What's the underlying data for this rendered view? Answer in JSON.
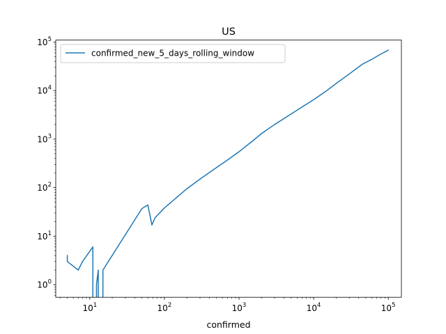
{
  "chart_data": {
    "type": "line",
    "title": "US",
    "xlabel": "confirmed",
    "ylabel": "",
    "xscale": "log",
    "yscale": "log",
    "xlim": [
      3.5,
      150000
    ],
    "ylim": [
      0.55,
      110000
    ],
    "grid": false,
    "legend_position": "top-left",
    "x_tick_labels": [
      {
        "value": 10,
        "base": "10",
        "exp": "1"
      },
      {
        "value": 100,
        "base": "10",
        "exp": "2"
      },
      {
        "value": 1000,
        "base": "10",
        "exp": "3"
      },
      {
        "value": 10000,
        "base": "10",
        "exp": "4"
      },
      {
        "value": 100000,
        "base": "10",
        "exp": "5"
      }
    ],
    "y_tick_labels": [
      {
        "value": 1,
        "base": "10",
        "exp": "0"
      },
      {
        "value": 10,
        "base": "10",
        "exp": "1"
      },
      {
        "value": 100,
        "base": "10",
        "exp": "2"
      },
      {
        "value": 1000,
        "base": "10",
        "exp": "3"
      },
      {
        "value": 10000,
        "base": "10",
        "exp": "4"
      },
      {
        "value": 100000,
        "base": "10",
        "exp": "5"
      }
    ],
    "series": [
      {
        "name": "confirmed_new_5_days_rolling_window",
        "color": "#1f77b4",
        "segments": [
          [
            [
              5,
              4
            ],
            [
              5,
              3
            ],
            [
              7,
              2
            ],
            [
              8,
              3
            ],
            [
              11,
              6
            ],
            [
              11,
              0.4
            ]
          ],
          [
            [
              12.3,
              0.4
            ],
            [
              12.3,
              1
            ],
            [
              13,
              2
            ],
            [
              13,
              0.4
            ]
          ],
          [
            [
              15,
              0.4
            ],
            [
              15,
              2
            ],
            [
              50,
              37
            ],
            [
              60,
              44
            ],
            [
              68,
              17
            ],
            [
              75,
              24
            ],
            [
              100,
              38
            ],
            [
              150,
              65
            ],
            [
              200,
              95
            ],
            [
              300,
              150
            ],
            [
              500,
              260
            ],
            [
              700,
              370
            ],
            [
              1000,
              550
            ],
            [
              1500,
              900
            ],
            [
              2000,
              1300
            ],
            [
              3000,
              2000
            ],
            [
              5000,
              3300
            ],
            [
              7000,
              4600
            ],
            [
              10000,
              6500
            ],
            [
              15000,
              10000
            ],
            [
              20000,
              14000
            ],
            [
              30000,
              22000
            ],
            [
              45000,
              35000
            ],
            [
              60000,
              44000
            ],
            [
              80000,
              57000
            ],
            [
              100000,
              68000
            ]
          ]
        ]
      }
    ]
  }
}
